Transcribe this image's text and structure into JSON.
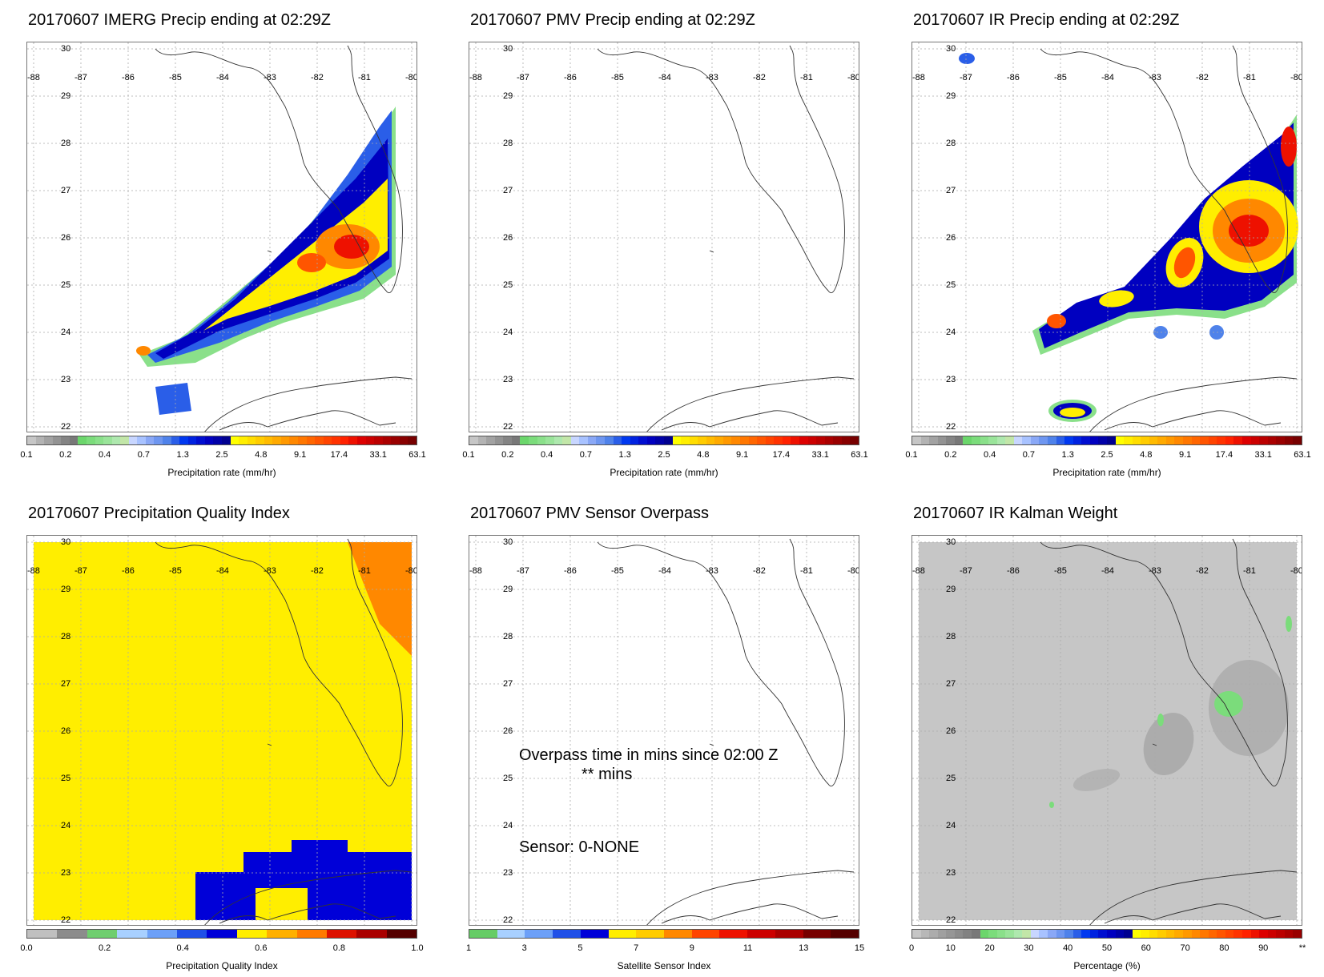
{
  "panels": [
    {
      "title": "20170607 IMERG Precip ending at 02:29Z",
      "type": "precip",
      "cb_label": "Precipitation rate (mm/hr)"
    },
    {
      "title": "20170607 PMV Precip ending at 02:29Z",
      "type": "empty",
      "cb_label": "Precipitation rate (mm/hr)"
    },
    {
      "title": "20170607 IR Precip ending at 02:29Z",
      "type": "precip_ir",
      "cb_label": "Precipitation rate (mm/hr)"
    },
    {
      "title": "20170607 Precipitation Quality Index",
      "type": "quality",
      "cb_label": "Precipitation Quality Index"
    },
    {
      "title": "20170607 PMV Sensor Overpass",
      "type": "sensor",
      "cb_label": "Satellite Sensor Index"
    },
    {
      "title": "20170607 IR Kalman Weight",
      "type": "kalman",
      "cb_label": "Percentage (%)"
    }
  ],
  "map": {
    "lat_labels": [
      "30",
      "29",
      "28",
      "27",
      "26",
      "25",
      "24",
      "23",
      "22"
    ],
    "lon_labels": [
      "-88",
      "-87",
      "-86",
      "-85",
      "-84",
      "-83",
      "-82",
      "-81",
      "-80"
    ]
  },
  "colorbars": {
    "precip": {
      "ticks": [
        "0.1",
        "0.2",
        "0.4",
        "0.7",
        "1.3",
        "2.5",
        "4.8",
        "9.1",
        "17.4",
        "33.1",
        "63.1"
      ],
      "colors": [
        "#c6c6c6",
        "#b3b3b3",
        "#a2a2a2",
        "#939393",
        "#848484",
        "#787878",
        "#6bd66b",
        "#7bdc7b",
        "#8ae08a",
        "#9ae49a",
        "#aee8ae",
        "#c2e6a8",
        "#c8d6ff",
        "#a8c2ff",
        "#8aa8f6",
        "#6e96f0",
        "#4f82ea",
        "#2a5ee8",
        "#0038f0",
        "#0022e0",
        "#000ed0",
        "#0000c0",
        "#0000a8",
        "#000090",
        "#ffff00",
        "#ffee00",
        "#ffdd00",
        "#ffcc00",
        "#ffbb00",
        "#ffaa00",
        "#ff9900",
        "#ff8800",
        "#ff7700",
        "#ff6600",
        "#ff5500",
        "#ff4400",
        "#ff3300",
        "#ff2200",
        "#ee1100",
        "#dd0000",
        "#cc0000",
        "#bb0000",
        "#aa0000",
        "#990000",
        "#880000",
        "#770000"
      ]
    },
    "quality": {
      "ticks": [
        "0.0",
        "0.2",
        "0.4",
        "0.6",
        "0.8",
        "1.0"
      ],
      "colors": [
        "#c0c0c0",
        "#8c8c8c",
        "#6fce6f",
        "#a8d0ff",
        "#6ca0f8",
        "#2050e8",
        "#0000d8",
        "#ffee00",
        "#ffb000",
        "#ff7a00",
        "#dd1100",
        "#aa0000",
        "#550000"
      ]
    },
    "sensor": {
      "ticks": [
        "1",
        "3",
        "5",
        "7",
        "9",
        "11",
        "13",
        "15"
      ],
      "colors": [
        "#66cc66",
        "#a8d0ff",
        "#6ca0f8",
        "#2050e8",
        "#0000d8",
        "#ffee00",
        "#ffcc00",
        "#ff8800",
        "#ff4400",
        "#ee1100",
        "#cc0000",
        "#aa0000",
        "#770000",
        "#550000"
      ]
    },
    "kalman": {
      "ticks": [
        "0",
        "10",
        "20",
        "30",
        "40",
        "50",
        "60",
        "70",
        "80",
        "90",
        "**"
      ],
      "colors": [
        "#c6c6c6",
        "#b8b8b8",
        "#acacac",
        "#a0a0a0",
        "#969696",
        "#8c8c8c",
        "#828282",
        "#787878",
        "#6bd66b",
        "#7bdc7b",
        "#8ae08a",
        "#9ae49a",
        "#aee8ae",
        "#c2e6a8",
        "#c8d6ff",
        "#a8c2ff",
        "#8aa8f6",
        "#6e96f0",
        "#4f82ea",
        "#2a5ee8",
        "#0038f0",
        "#0022e0",
        "#000ed0",
        "#0000c0",
        "#0000a8",
        "#000090",
        "#ffff00",
        "#ffee00",
        "#ffdd00",
        "#ffcc00",
        "#ffbb00",
        "#ffaa00",
        "#ff9900",
        "#ff8800",
        "#ff7700",
        "#ff6600",
        "#ff5500",
        "#ff4400",
        "#ff3300",
        "#ff2200",
        "#ee1100",
        "#dd0000",
        "#cc0000",
        "#bb0000",
        "#aa0000",
        "#990000"
      ]
    }
  },
  "overpass": {
    "line1": "Overpass time in mins since 02:00 Z",
    "line2": "** mins",
    "sensor_line": "Sensor:   0-NONE"
  }
}
